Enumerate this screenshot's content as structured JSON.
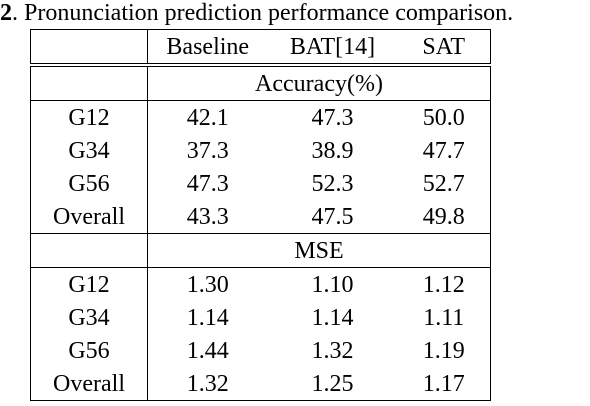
{
  "caption": {
    "number": "2",
    "text": ". Pronunciation prediction performance comparison."
  },
  "table": {
    "columns": [
      "",
      "Baseline",
      "BAT[14]",
      "SAT"
    ],
    "sections": [
      {
        "title": "Accuracy(%)",
        "rows": [
          {
            "label": "G12",
            "values": [
              "42.1",
              "47.3",
              "50.0"
            ]
          },
          {
            "label": "G34",
            "values": [
              "37.3",
              "38.9",
              "47.7"
            ]
          },
          {
            "label": "G56",
            "values": [
              "47.3",
              "52.3",
              "52.7"
            ]
          },
          {
            "label": "Overall",
            "values": [
              "43.3",
              "47.5",
              "49.8"
            ]
          }
        ]
      },
      {
        "title": "MSE",
        "rows": [
          {
            "label": "G12",
            "values": [
              "1.30",
              "1.10",
              "1.12"
            ]
          },
          {
            "label": "G34",
            "values": [
              "1.14",
              "1.14",
              "1.11"
            ]
          },
          {
            "label": "G56",
            "values": [
              "1.44",
              "1.32",
              "1.19"
            ]
          },
          {
            "label": "Overall",
            "values": [
              "1.32",
              "1.25",
              "1.17"
            ]
          }
        ]
      }
    ]
  }
}
